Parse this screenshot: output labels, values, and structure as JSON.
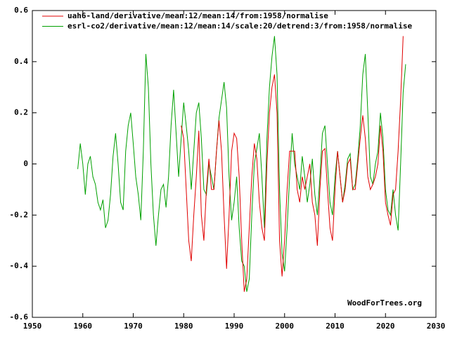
{
  "chart_data": {
    "type": "line",
    "series": [
      {
        "name": "uah6-land/derivative/mean:12/mean:14/from:1958/normalise",
        "color": "#e00000",
        "x": [
          1979.5,
          1980,
          1980.5,
          1981,
          1981.5,
          1982,
          1982.5,
          1983,
          1983.5,
          1984,
          1984.5,
          1985,
          1985.5,
          1986,
          1986.5,
          1987,
          1987.5,
          1988,
          1988.5,
          1989,
          1989.5,
          1990,
          1990.5,
          1991,
          1991.5,
          1992,
          1992.5,
          1993,
          1993.5,
          1994,
          1994.5,
          1995,
          1995.5,
          1996,
          1996.5,
          1997,
          1997.5,
          1998,
          1998.5,
          1999,
          1999.5,
          2000,
          2000.5,
          2001,
          2001.5,
          2002,
          2002.5,
          2003,
          2003.5,
          2004,
          2004.5,
          2005,
          2005.5,
          2006,
          2006.5,
          2007,
          2007.5,
          2008,
          2008.5,
          2009,
          2009.5,
          2010,
          2010.5,
          2011,
          2011.5,
          2012,
          2012.5,
          2013,
          2013.5,
          2014,
          2014.5,
          2015,
          2015.5,
          2016,
          2016.5,
          2017,
          2017.5,
          2018,
          2018.5,
          2019,
          2019.5,
          2020,
          2020.5,
          2021,
          2021.5,
          2022,
          2022.5,
          2023,
          2023.5
        ],
        "values": [
          0.15,
          0.1,
          -0.1,
          -0.3,
          -0.38,
          -0.2,
          -0.05,
          0.13,
          -0.2,
          -0.3,
          -0.1,
          0.02,
          -0.1,
          -0.1,
          0.05,
          0.17,
          0.05,
          -0.2,
          -0.41,
          -0.2,
          0.05,
          0.12,
          0.1,
          -0.05,
          -0.3,
          -0.5,
          -0.45,
          -0.25,
          -0.05,
          0.08,
          0.02,
          -0.15,
          -0.25,
          -0.3,
          0.0,
          0.2,
          0.3,
          0.35,
          0.2,
          -0.3,
          -0.44,
          -0.3,
          -0.1,
          0.05,
          0.05,
          0.05,
          -0.1,
          -0.15,
          -0.05,
          -0.1,
          -0.05,
          0.0,
          -0.15,
          -0.2,
          -0.32,
          -0.1,
          0.05,
          0.06,
          -0.1,
          -0.25,
          -0.3,
          -0.1,
          0.05,
          -0.05,
          -0.15,
          -0.1,
          0.0,
          0.02,
          -0.1,
          -0.1,
          0.0,
          0.1,
          0.19,
          0.1,
          -0.05,
          -0.1,
          -0.08,
          -0.05,
          0.0,
          0.15,
          0.05,
          -0.15,
          -0.2,
          -0.24,
          -0.12,
          -0.1,
          0.05,
          0.25,
          0.5
        ]
      },
      {
        "name": "esrl-co2/derivative/mean:12/mean:14/scale:20/detrend:3/from:1958/normalise",
        "color": "#00a000",
        "x": [
          1959,
          1959.5,
          1960,
          1960.5,
          1961,
          1961.5,
          1962,
          1962.5,
          1963,
          1963.5,
          1964,
          1964.5,
          1965,
          1965.5,
          1966,
          1966.5,
          1967,
          1967.5,
          1968,
          1968.5,
          1969,
          1969.5,
          1970,
          1970.5,
          1971,
          1971.5,
          1972,
          1972.5,
          1973,
          1973.5,
          1974,
          1974.5,
          1975,
          1975.5,
          1976,
          1976.5,
          1977,
          1977.5,
          1978,
          1978.5,
          1979,
          1979.5,
          1980,
          1980.5,
          1981,
          1981.5,
          1982,
          1982.5,
          1983,
          1983.5,
          1984,
          1984.5,
          1985,
          1985.5,
          1986,
          1986.5,
          1987,
          1987.5,
          1988,
          1988.5,
          1989,
          1989.5,
          1990,
          1990.5,
          1991,
          1991.5,
          1992,
          1992.5,
          1993,
          1993.5,
          1994,
          1994.5,
          1995,
          1995.5,
          1996,
          1996.5,
          1997,
          1997.5,
          1998,
          1998.5,
          1999,
          1999.5,
          2000,
          2000.5,
          2001,
          2001.5,
          2002,
          2002.5,
          2003,
          2003.5,
          2004,
          2004.5,
          2005,
          2005.5,
          2006,
          2006.5,
          2007,
          2007.5,
          2008,
          2008.5,
          2009,
          2009.5,
          2010,
          2010.5,
          2011,
          2011.5,
          2012,
          2012.5,
          2013,
          2013.5,
          2014,
          2014.5,
          2015,
          2015.5,
          2016,
          2016.5,
          2017,
          2017.5,
          2018,
          2018.5,
          2019,
          2019.5,
          2020,
          2020.5,
          2021,
          2021.5,
          2022,
          2022.5,
          2023,
          2023.5,
          2024
        ],
        "values": [
          -0.02,
          0.08,
          0.0,
          -0.12,
          0.0,
          0.03,
          -0.05,
          -0.08,
          -0.15,
          -0.18,
          -0.14,
          -0.25,
          -0.22,
          -0.12,
          0.03,
          0.12,
          0.0,
          -0.15,
          -0.18,
          0.05,
          0.15,
          0.2,
          0.08,
          -0.05,
          -0.12,
          -0.22,
          0.05,
          0.43,
          0.3,
          0.0,
          -0.2,
          -0.32,
          -0.2,
          -0.1,
          -0.08,
          -0.17,
          -0.05,
          0.15,
          0.29,
          0.12,
          -0.05,
          0.1,
          0.24,
          0.15,
          0.05,
          -0.1,
          0.05,
          0.2,
          0.24,
          0.1,
          -0.1,
          -0.12,
          0.0,
          -0.05,
          -0.1,
          0.05,
          0.18,
          0.25,
          0.32,
          0.22,
          -0.05,
          -0.22,
          -0.15,
          -0.05,
          -0.25,
          -0.38,
          -0.4,
          -0.5,
          -0.45,
          -0.2,
          0.0,
          0.06,
          0.12,
          -0.05,
          -0.25,
          0.1,
          0.3,
          0.42,
          0.5,
          0.35,
          -0.1,
          -0.35,
          -0.42,
          -0.25,
          -0.05,
          0.12,
          0.0,
          -0.05,
          -0.1,
          0.03,
          -0.05,
          -0.15,
          -0.08,
          0.02,
          -0.12,
          -0.2,
          -0.05,
          0.12,
          0.15,
          0.0,
          -0.15,
          -0.2,
          -0.05,
          0.05,
          -0.05,
          -0.15,
          -0.08,
          0.02,
          0.04,
          -0.1,
          -0.08,
          0.02,
          0.15,
          0.35,
          0.43,
          0.2,
          -0.05,
          -0.08,
          0.0,
          0.05,
          0.2,
          0.1,
          -0.1,
          -0.18,
          -0.2,
          -0.1,
          -0.2,
          -0.26,
          0.0,
          0.28,
          0.39
        ]
      }
    ],
    "xlim": [
      1950,
      2030
    ],
    "xticks": [
      1950,
      1960,
      1970,
      1980,
      1990,
      2000,
      2010,
      2020,
      2030
    ],
    "ylim": [
      -0.6,
      0.6
    ],
    "yticks": [
      -0.6,
      -0.4,
      -0.2,
      0,
      0.2,
      0.4,
      0.6
    ],
    "annotation": "WoodForTrees.org",
    "legend": "top-left"
  }
}
